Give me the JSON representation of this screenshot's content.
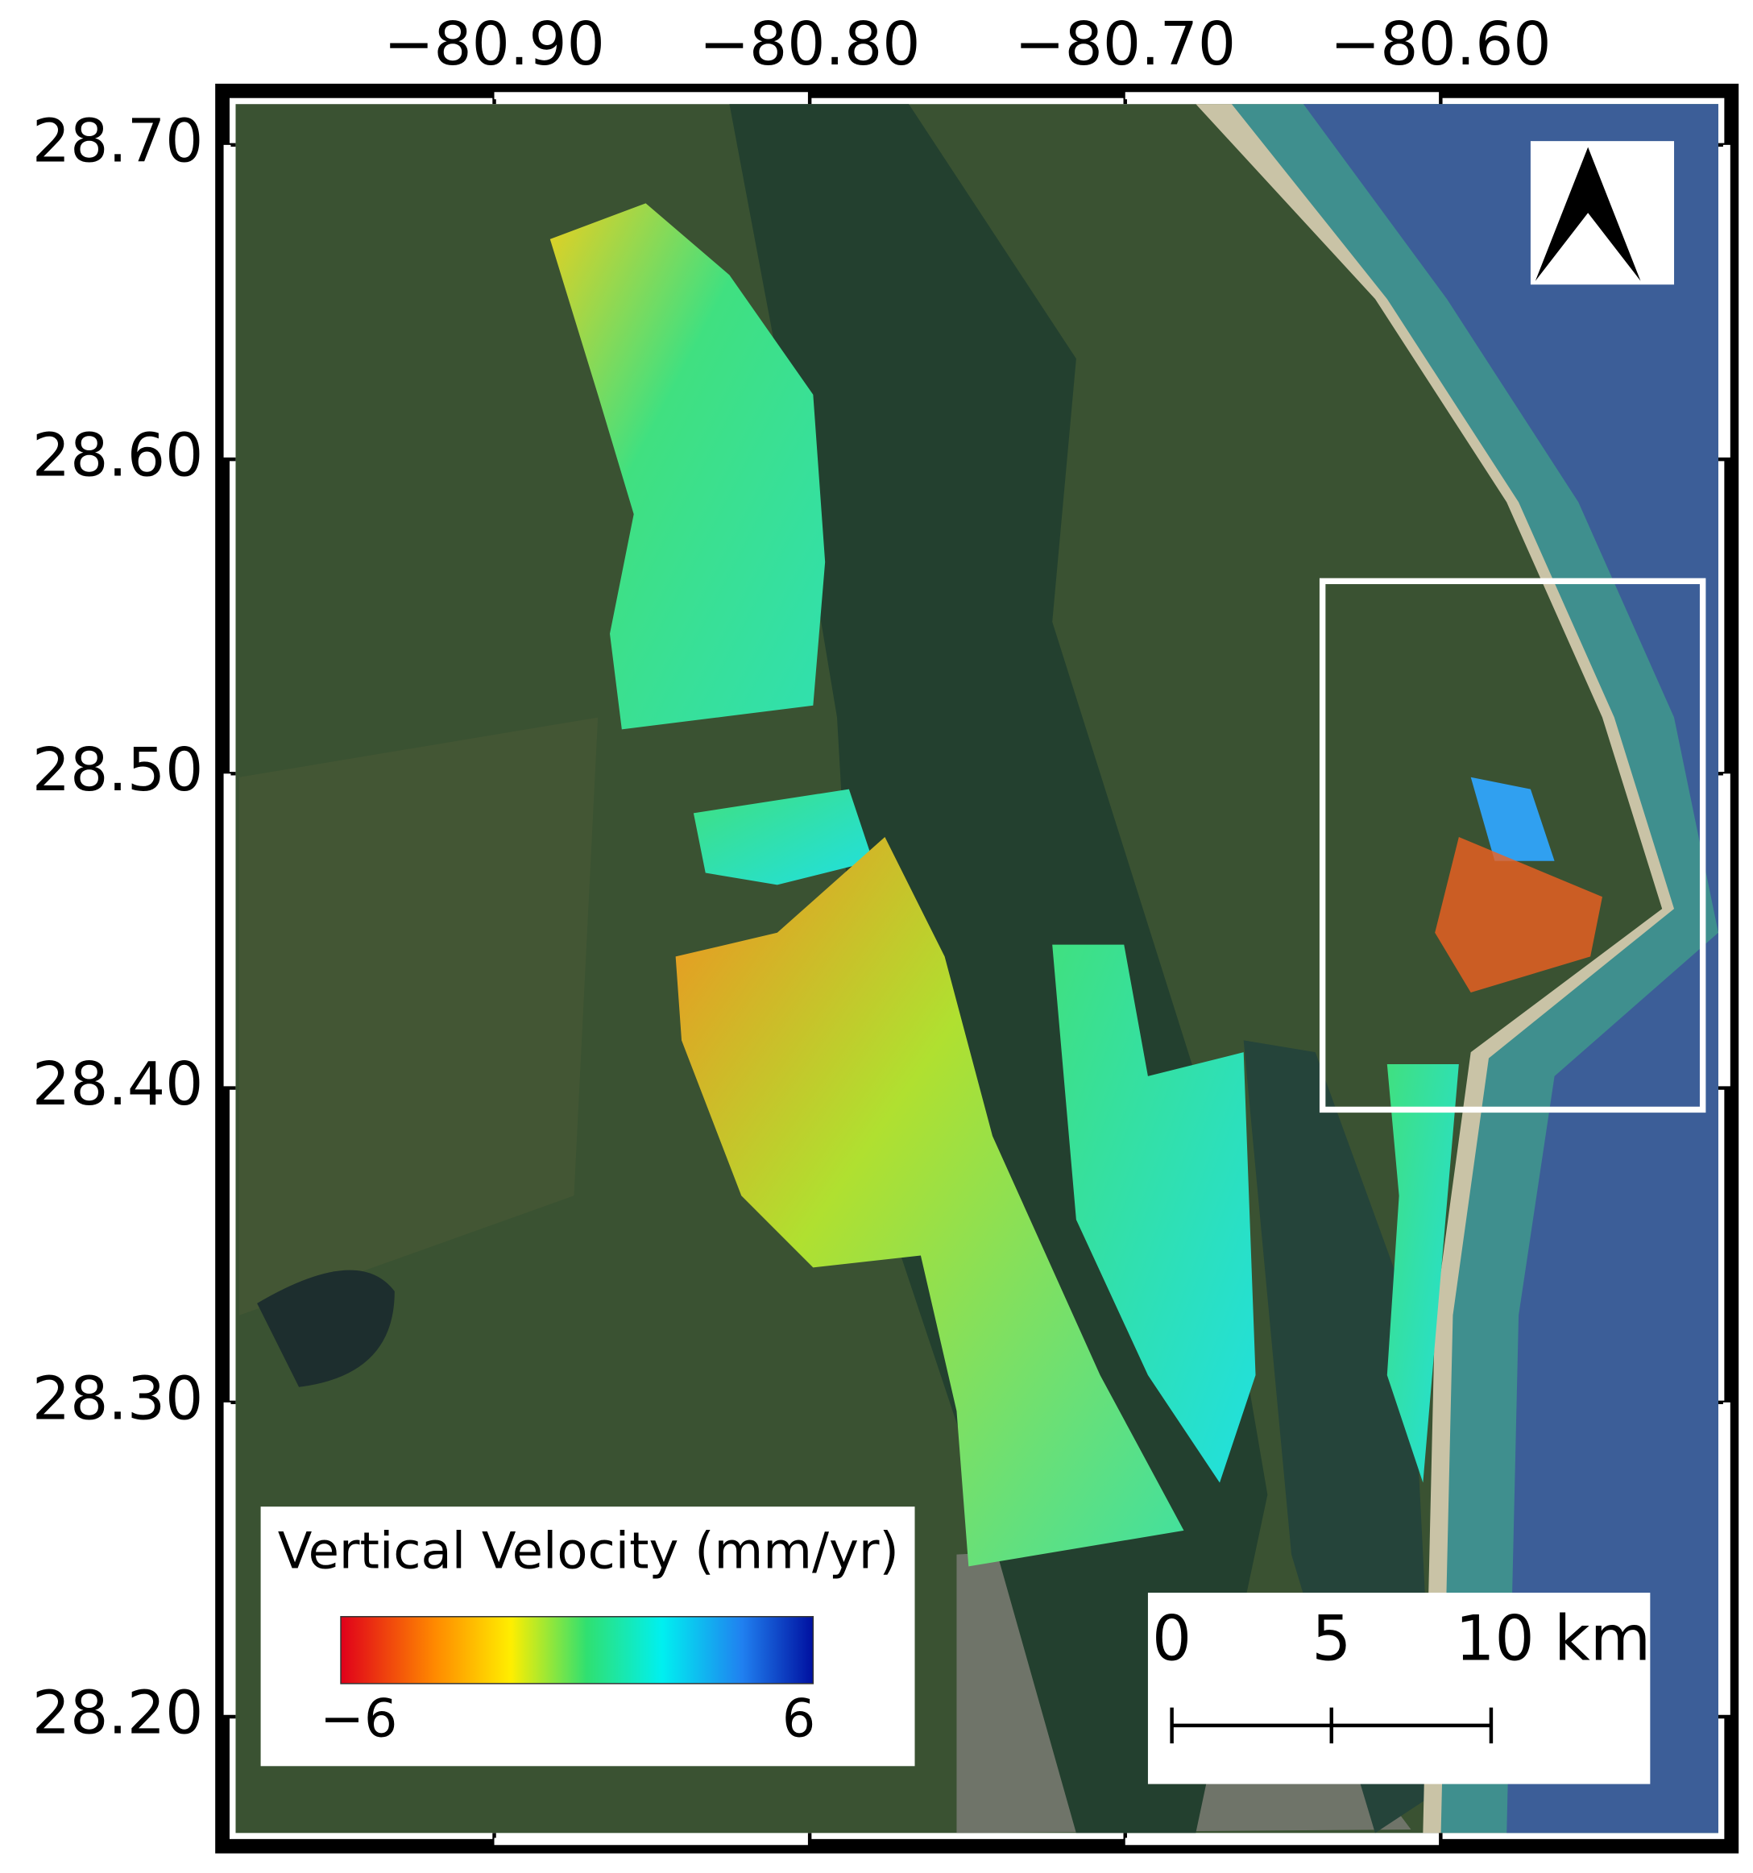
{
  "chart_data": {
    "type": "map",
    "xlim": [
      -80.982,
      -80.512
    ],
    "ylim": [
      28.163,
      28.713
    ],
    "xticks": [
      {
        "value": -80.9,
        "label": "−80.90"
      },
      {
        "value": -80.8,
        "label": "−80.80"
      },
      {
        "value": -80.7,
        "label": "−80.70"
      },
      {
        "value": -80.6,
        "label": "−80.60"
      }
    ],
    "yticks": [
      {
        "value": 28.7,
        "label": "28.70"
      },
      {
        "value": 28.6,
        "label": "28.60"
      },
      {
        "value": 28.5,
        "label": "28.50"
      },
      {
        "value": 28.4,
        "label": "28.40"
      },
      {
        "value": 28.3,
        "label": "28.30"
      },
      {
        "value": 28.2,
        "label": "28.20"
      }
    ],
    "colorbar": {
      "title": "Vertical Velocity (mm/yr)",
      "ticks": [
        {
          "value": -6,
          "label": "−6"
        },
        6
      ]
    },
    "scale_bar": {
      "ticks": [
        0,
        5,
        {
          "value": 10,
          "label": "10 km"
        }
      ]
    }
  }
}
